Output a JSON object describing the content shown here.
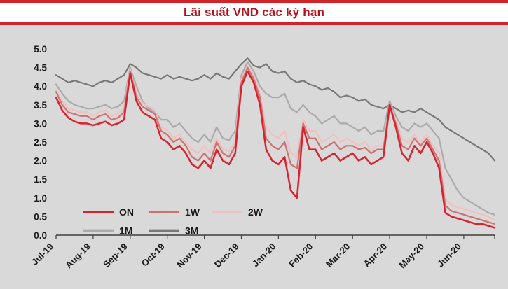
{
  "colors": {
    "background": "#D9D9D9",
    "band_bg": "#FFFFFF",
    "band_border": "#D2232A",
    "title_text": "#B5121F",
    "axis_text": "#1A1A1A",
    "axis_line": "#3F3F3F"
  },
  "chart_data": {
    "type": "line",
    "title": "Lãi suất VND các kỳ hạn",
    "xlabel": "",
    "ylabel": "",
    "ylim": [
      0,
      5
    ],
    "y_ticks": [
      0,
      0.5,
      1,
      1.5,
      2,
      2.5,
      3,
      3.5,
      4,
      4.5,
      5
    ],
    "x_tick_labels": [
      "Jul-19",
      "Aug-19",
      "Sep-19",
      "Oct-19",
      "Nov-19",
      "Dec-19",
      "Jan-20",
      "Feb-20",
      "Mar-20",
      "Apr-20",
      "May-20",
      "Jun-20"
    ],
    "points_per_month": 6,
    "grid": false,
    "legend": {
      "position": "inside-bottom-left",
      "rows": [
        [
          "ON",
          "1W",
          "2W"
        ],
        [
          "1M",
          "3M"
        ]
      ]
    },
    "series": [
      {
        "name": "ON",
        "color": "#D8232E",
        "values": [
          3.7,
          3.35,
          3.15,
          3.05,
          3.0,
          3.0,
          2.95,
          3.0,
          3.05,
          2.95,
          3.0,
          3.1,
          4.35,
          3.6,
          3.3,
          3.2,
          3.1,
          2.6,
          2.5,
          2.3,
          2.4,
          2.2,
          1.9,
          1.8,
          2.0,
          1.8,
          2.3,
          2.0,
          1.9,
          2.2,
          4.0,
          4.4,
          4.1,
          3.5,
          2.3,
          2.0,
          1.9,
          2.1,
          1.2,
          1.0,
          2.9,
          2.3,
          2.3,
          2.0,
          2.1,
          2.2,
          2.0,
          2.1,
          2.2,
          2.0,
          2.1,
          1.9,
          2.0,
          2.1,
          3.5,
          2.9,
          2.2,
          2.0,
          2.4,
          2.2,
          2.5,
          2.2,
          1.8,
          0.6,
          0.5,
          0.45,
          0.4,
          0.35,
          0.3,
          0.3,
          0.25,
          0.2
        ]
      },
      {
        "name": "1W",
        "color": "#CE7172",
        "values": [
          3.85,
          3.5,
          3.3,
          3.25,
          3.2,
          3.2,
          3.1,
          3.2,
          3.25,
          3.1,
          3.15,
          3.3,
          4.4,
          3.7,
          3.45,
          3.35,
          3.25,
          2.8,
          2.7,
          2.5,
          2.6,
          2.4,
          2.1,
          2.0,
          2.2,
          2.0,
          2.5,
          2.2,
          2.1,
          2.4,
          4.1,
          4.5,
          4.2,
          3.7,
          2.6,
          2.4,
          2.3,
          2.5,
          1.9,
          1.8,
          3.0,
          2.6,
          2.6,
          2.3,
          2.4,
          2.5,
          2.3,
          2.4,
          2.4,
          2.3,
          2.35,
          2.2,
          2.3,
          2.3,
          3.5,
          3.0,
          2.4,
          2.3,
          2.6,
          2.4,
          2.6,
          2.3,
          2.0,
          0.8,
          0.65,
          0.6,
          0.55,
          0.5,
          0.45,
          0.4,
          0.35,
          0.3
        ]
      },
      {
        "name": "2W",
        "color": "#F2C0BE",
        "values": [
          3.9,
          3.6,
          3.4,
          3.35,
          3.3,
          3.3,
          3.2,
          3.3,
          3.35,
          3.2,
          3.25,
          3.4,
          4.45,
          3.8,
          3.55,
          3.45,
          3.35,
          2.9,
          2.8,
          2.6,
          2.7,
          2.5,
          2.3,
          2.2,
          2.4,
          2.2,
          2.6,
          2.3,
          2.25,
          2.5,
          4.2,
          4.55,
          4.3,
          3.8,
          2.9,
          2.7,
          2.6,
          2.8,
          2.2,
          2.1,
          3.1,
          2.8,
          2.8,
          2.5,
          2.6,
          2.7,
          2.5,
          2.6,
          2.5,
          2.4,
          2.5,
          2.3,
          2.4,
          2.4,
          3.5,
          3.1,
          2.6,
          2.5,
          2.7,
          2.5,
          2.7,
          2.4,
          2.2,
          1.0,
          0.8,
          0.75,
          0.7,
          0.65,
          0.6,
          0.55,
          0.5,
          0.4
        ]
      },
      {
        "name": "1M",
        "color": "#ABABAB",
        "values": [
          4.05,
          3.8,
          3.6,
          3.5,
          3.45,
          3.4,
          3.4,
          3.45,
          3.5,
          3.4,
          3.45,
          3.6,
          4.5,
          4.0,
          3.6,
          3.4,
          3.3,
          3.1,
          3.1,
          2.9,
          3.0,
          2.8,
          2.6,
          2.5,
          2.7,
          2.5,
          2.9,
          2.6,
          2.55,
          2.8,
          4.3,
          4.65,
          4.4,
          4.0,
          3.8,
          3.7,
          3.7,
          3.8,
          3.4,
          3.3,
          3.5,
          3.3,
          3.2,
          3.0,
          3.1,
          3.2,
          3.0,
          3.0,
          2.9,
          2.8,
          2.9,
          2.7,
          2.8,
          2.8,
          3.6,
          3.2,
          2.9,
          2.8,
          3.0,
          2.9,
          3.0,
          2.8,
          2.6,
          1.8,
          1.5,
          1.2,
          1.0,
          0.9,
          0.8,
          0.7,
          0.6,
          0.55
        ]
      },
      {
        "name": "3M",
        "color": "#787878",
        "values": [
          4.3,
          4.2,
          4.1,
          4.15,
          4.1,
          4.05,
          4.0,
          4.1,
          4.15,
          4.1,
          4.2,
          4.3,
          4.6,
          4.5,
          4.35,
          4.3,
          4.25,
          4.2,
          4.3,
          4.2,
          4.25,
          4.2,
          4.15,
          4.2,
          4.3,
          4.2,
          4.35,
          4.25,
          4.2,
          4.4,
          4.6,
          4.75,
          4.55,
          4.5,
          4.6,
          4.4,
          4.35,
          4.4,
          4.2,
          4.1,
          4.15,
          4.05,
          4.0,
          3.9,
          3.95,
          3.85,
          3.7,
          3.75,
          3.7,
          3.6,
          3.65,
          3.5,
          3.45,
          3.4,
          3.5,
          3.4,
          3.3,
          3.35,
          3.3,
          3.4,
          3.3,
          3.2,
          3.1,
          2.9,
          2.8,
          2.7,
          2.6,
          2.5,
          2.4,
          2.3,
          2.2,
          2.0
        ]
      }
    ]
  }
}
